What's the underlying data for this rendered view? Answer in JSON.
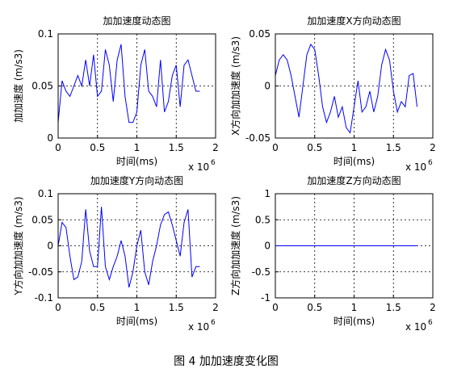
{
  "chart_data": [
    {
      "type": "line",
      "title": "加加速度动态图",
      "xlabel": "时间(ms)",
      "ylabel": "加加速度 (m/s3)",
      "x_multiplier": {
        "text": "x 10",
        "exponent": "6"
      },
      "xlim": [
        0,
        2
      ],
      "xticks": [
        0,
        0.5,
        1,
        1.5,
        2
      ],
      "ylim": [
        0,
        0.1
      ],
      "yticks": [
        0,
        0.05,
        0.1
      ],
      "grid": true,
      "x": [
        0,
        0.05,
        0.1,
        0.15,
        0.2,
        0.25,
        0.3,
        0.35,
        0.4,
        0.45,
        0.5,
        0.55,
        0.6,
        0.65,
        0.7,
        0.75,
        0.8,
        0.85,
        0.9,
        0.95,
        1,
        1.05,
        1.1,
        1.15,
        1.2,
        1.25,
        1.3,
        1.35,
        1.4,
        1.45,
        1.5,
        1.55,
        1.6,
        1.65,
        1.7,
        1.75,
        1.8
      ],
      "series": [
        {
          "color": "#0000ff",
          "values": [
            0.015,
            0.055,
            0.045,
            0.04,
            0.05,
            0.06,
            0.05,
            0.075,
            0.05,
            0.08,
            0.04,
            0.045,
            0.085,
            0.07,
            0.035,
            0.075,
            0.09,
            0.04,
            0.015,
            0.015,
            0.025,
            0.07,
            0.085,
            0.045,
            0.04,
            0.03,
            0.075,
            0.025,
            0.035,
            0.06,
            0.07,
            0.03,
            0.07,
            0.075,
            0.06,
            0.045,
            0.045
          ]
        }
      ]
    },
    {
      "type": "line",
      "title": "加加速度X方向动态图",
      "xlabel": "时间(ms)",
      "ylabel": "X方向加加速度 (m/s3)",
      "x_multiplier": {
        "text": "x 10",
        "exponent": "6"
      },
      "xlim": [
        0,
        2
      ],
      "xticks": [
        0,
        0.5,
        1,
        1.5,
        2
      ],
      "ylim": [
        -0.05,
        0.05
      ],
      "yticks": [
        -0.05,
        0,
        0.05
      ],
      "grid": true,
      "x": [
        0,
        0.05,
        0.1,
        0.15,
        0.2,
        0.25,
        0.3,
        0.35,
        0.4,
        0.45,
        0.5,
        0.55,
        0.6,
        0.65,
        0.7,
        0.75,
        0.8,
        0.85,
        0.9,
        0.95,
        1,
        1.05,
        1.1,
        1.15,
        1.2,
        1.25,
        1.3,
        1.35,
        1.4,
        1.45,
        1.5,
        1.55,
        1.6,
        1.65,
        1.7,
        1.75,
        1.8
      ],
      "series": [
        {
          "color": "#0000ff",
          "values": [
            0.01,
            0.025,
            0.03,
            0.025,
            0.01,
            -0.01,
            -0.03,
            0.0,
            0.03,
            0.04,
            0.035,
            0.01,
            -0.02,
            -0.035,
            -0.025,
            -0.01,
            -0.03,
            -0.02,
            -0.04,
            -0.045,
            -0.02,
            0.005,
            -0.025,
            -0.02,
            -0.005,
            -0.025,
            -0.01,
            0.02,
            0.035,
            0.025,
            -0.005,
            -0.025,
            -0.015,
            -0.02,
            0.01,
            0.012,
            -0.02
          ]
        }
      ]
    },
    {
      "type": "line",
      "title": "加加速度Y方向动态图",
      "xlabel": "时间(ms)",
      "ylabel": "Y方向加加速度 (m/s3)",
      "x_multiplier": {
        "text": "x 10",
        "exponent": "6"
      },
      "xlim": [
        0,
        2
      ],
      "xticks": [
        0,
        0.5,
        1,
        1.5,
        2
      ],
      "ylim": [
        -0.1,
        0.1
      ],
      "yticks": [
        -0.1,
        -0.05,
        0,
        0.05,
        0.1
      ],
      "grid": true,
      "x": [
        0,
        0.05,
        0.1,
        0.15,
        0.2,
        0.25,
        0.3,
        0.35,
        0.4,
        0.45,
        0.5,
        0.55,
        0.6,
        0.65,
        0.7,
        0.75,
        0.8,
        0.85,
        0.9,
        0.95,
        1,
        1.05,
        1.1,
        1.15,
        1.2,
        1.25,
        1.3,
        1.35,
        1.4,
        1.45,
        1.5,
        1.55,
        1.6,
        1.65,
        1.7,
        1.75,
        1.8
      ],
      "series": [
        {
          "color": "#0000ff",
          "values": [
            0.0,
            0.045,
            0.035,
            -0.02,
            -0.065,
            -0.06,
            -0.03,
            0.07,
            -0.01,
            -0.04,
            -0.04,
            0.075,
            -0.04,
            -0.065,
            -0.04,
            -0.02,
            0.01,
            -0.02,
            -0.08,
            -0.05,
            0.0,
            0.03,
            -0.05,
            -0.075,
            -0.03,
            0.0,
            0.04,
            0.06,
            0.065,
            0.04,
            0.01,
            -0.02,
            0.045,
            0.07,
            -0.06,
            -0.04,
            -0.04
          ]
        }
      ]
    },
    {
      "type": "line",
      "title": "加加速度Z方向动态图",
      "xlabel": "时间(ms)",
      "ylabel": "Z方向加加速度 (m/s3)",
      "x_multiplier": {
        "text": "x 10",
        "exponent": "6"
      },
      "xlim": [
        0,
        2
      ],
      "xticks": [
        0,
        0.5,
        1,
        1.5,
        2
      ],
      "ylim": [
        -1,
        1
      ],
      "yticks": [
        -1,
        -0.5,
        0,
        0.5,
        1
      ],
      "grid": true,
      "x": [
        0,
        0.05,
        0.1,
        0.15,
        0.2,
        0.25,
        0.3,
        0.35,
        0.4,
        0.45,
        0.5,
        0.55,
        0.6,
        0.65,
        0.7,
        0.75,
        0.8,
        0.85,
        0.9,
        0.95,
        1,
        1.05,
        1.1,
        1.15,
        1.2,
        1.25,
        1.3,
        1.35,
        1.4,
        1.45,
        1.5,
        1.55,
        1.6,
        1.65,
        1.7,
        1.75,
        1.8
      ],
      "series": [
        {
          "color": "#0000ff",
          "values": [
            0,
            0,
            0,
            0,
            0,
            0,
            0,
            0,
            0,
            0,
            0,
            0,
            0,
            0,
            0,
            0,
            0,
            0,
            0,
            0,
            0,
            0,
            0,
            0,
            0,
            0,
            0,
            0,
            0,
            0,
            0,
            0,
            0,
            0,
            0,
            0,
            0
          ]
        }
      ]
    }
  ],
  "caption": "图 4  加加速度变化图"
}
